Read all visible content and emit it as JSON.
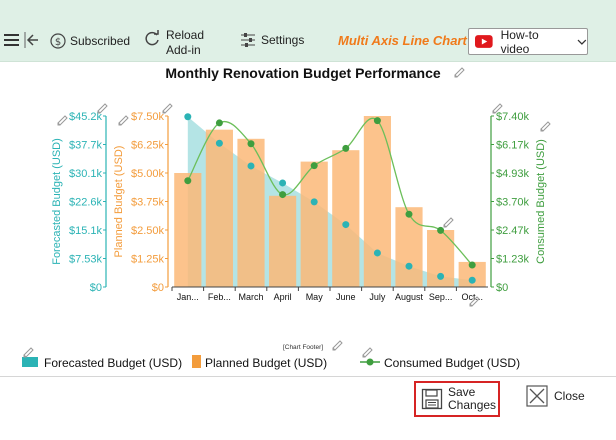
{
  "toolbar": {
    "subscribed_label": "Subscribed",
    "reload_label_line1": "Reload",
    "reload_label_line2": "Add-in",
    "settings_label": "Settings",
    "brand_title": "Multi Axis Line Chart",
    "howto_label": "How-to video"
  },
  "footer": {
    "chart_footer": "[Chart Footer]",
    "save_label_line1": "Save",
    "save_label_line2": "Changes",
    "close_label": "Close"
  },
  "colors": {
    "forecast": "#2bb3b5",
    "forecast_fill": "#a7dfe0",
    "planned": "#f39c3c",
    "planned_fill": "#fbb878",
    "consumed": "#3f9e3f",
    "brand": "#f07a1a",
    "save_border": "#d62424"
  },
  "chart_data": {
    "type": "bar",
    "title": "Monthly Renovation Budget Performance",
    "categories": [
      "Jan...",
      "Feb...",
      "March",
      "April",
      "May",
      "June",
      "July",
      "August",
      "Sep...",
      "Oct..."
    ],
    "series": [
      {
        "name": "Forecasted Budget (USD)",
        "kind": "area-points",
        "axis": "left-outer",
        "values": [
          45000,
          38000,
          32000,
          27500,
          22500,
          16500,
          9000,
          5500,
          2800,
          1800
        ]
      },
      {
        "name": "Planned Budget (USD)",
        "kind": "bar",
        "axis": "left-inner",
        "values": [
          5000,
          6900,
          6500,
          4000,
          5500,
          6000,
          7500,
          3500,
          2500,
          1100
        ]
      },
      {
        "name": "Consumed Budget (USD)",
        "kind": "line",
        "axis": "right",
        "values": [
          4600,
          7100,
          6200,
          4000,
          5250,
          6000,
          7200,
          3150,
          2450,
          950
        ]
      }
    ],
    "axes": {
      "forecast": {
        "label": "Forecasted Budget (USD)",
        "ticks": [
          "$0",
          "$7.53k",
          "$15.1k",
          "$22.6k",
          "$30.1k",
          "$37.7k",
          "$45.2k"
        ],
        "max": 45200
      },
      "planned": {
        "label": "Planned Budget (USD)",
        "ticks": [
          "$0",
          "$1.25k",
          "$2.50k",
          "$3.75k",
          "$5.00k",
          "$6.25k",
          "$7.50k"
        ],
        "max": 7500
      },
      "consumed": {
        "label": "Consumed Budget (USD)",
        "ticks": [
          "$0",
          "$1.23k",
          "$2.47k",
          "$3.70k",
          "$4.93k",
          "$6.17k",
          "$7.40k"
        ],
        "max": 7400
      }
    },
    "legend": [
      "Forecasted Budget (USD)",
      "Planned Budget (USD)",
      "Consumed Budget (USD)"
    ],
    "legend_position": "bottom",
    "grid": false
  }
}
